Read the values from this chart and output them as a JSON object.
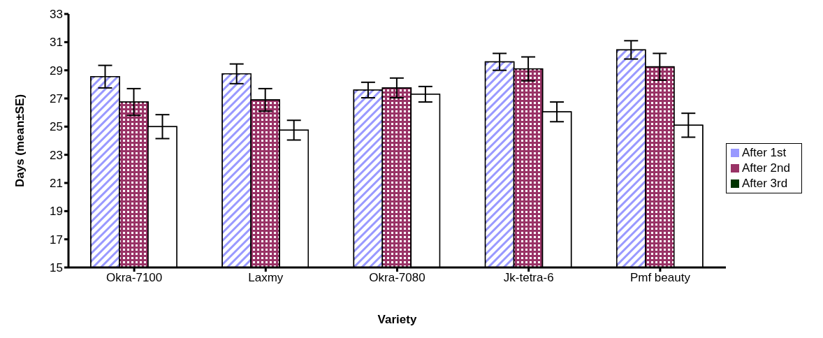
{
  "chart_data": {
    "type": "bar",
    "xlabel": "Variety",
    "ylabel": "Days (mean±SE)",
    "categories": [
      "Okra-7100",
      "Laxmy",
      "Okra-7080",
      "Jk-tetra-6",
      "Pmf beauty"
    ],
    "series": [
      {
        "name": "After 1st",
        "color": "#9999ff",
        "values": [
          28.55,
          28.75,
          27.6,
          29.6,
          30.45
        ],
        "errors": [
          0.8,
          0.7,
          0.55,
          0.6,
          0.65
        ]
      },
      {
        "name": "After 2nd",
        "color": "#993366",
        "values": [
          26.75,
          26.9,
          27.75,
          29.1,
          29.25
        ],
        "errors": [
          0.95,
          0.8,
          0.7,
          0.85,
          0.95
        ]
      },
      {
        "name": "After 3rd",
        "color": "#003300",
        "values": [
          25.0,
          24.75,
          27.3,
          26.05,
          25.1
        ],
        "errors": [
          0.85,
          0.7,
          0.55,
          0.7,
          0.85
        ]
      }
    ],
    "ylim": [
      15,
      33
    ],
    "yticks": [
      15,
      17,
      19,
      21,
      23,
      25,
      27,
      29,
      31,
      33
    ],
    "grid": false,
    "legend": "right"
  }
}
